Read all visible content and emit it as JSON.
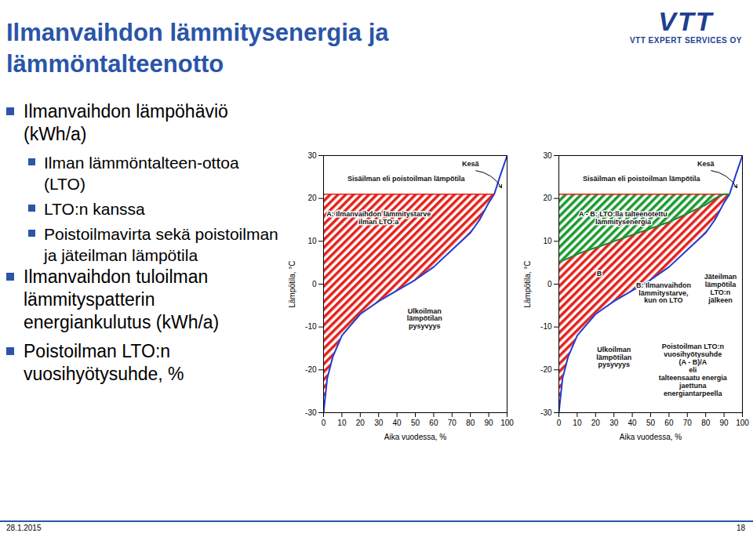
{
  "slide": {
    "title": "Ilmanvaihdon lämmitysenergia ja lämmöntalteenotto",
    "logo": {
      "mark": "VTT",
      "text": "VTT EXPERT SERVICES OY"
    },
    "bullets": [
      {
        "text": "Ilmanvaihdon lämpöhäviö (kWh/a)",
        "sub": [
          "Ilman lämmöntalteen-ottoa (LTO)",
          "LTO:n kanssa",
          "Poistoilmavirta sekä poistoilman ja jäteilman lämpötila"
        ]
      },
      {
        "text": "Ilmanvaihdon tuloilman lämmityspatterin energiankulutus (kWh/a)",
        "sub": []
      },
      {
        "text": "Poistoilman LTO:n vuosihyötysuhde, %",
        "sub": []
      }
    ],
    "date": "28.1.2015",
    "page": "18"
  },
  "chart_data": [
    {
      "type": "line",
      "x_label": "Aika vuodessa, %",
      "y_label": "Lämpötila, °C",
      "x": [
        0,
        2,
        5,
        10,
        15,
        20,
        30,
        40,
        50,
        60,
        70,
        80,
        85,
        90,
        93,
        96,
        100
      ],
      "series": [
        {
          "name": "Ulkoilman\nlämpötilan\npysyvyys",
          "color": "#1f3bd1",
          "values": [
            -30,
            -22,
            -17,
            -12,
            -9.5,
            -7,
            -4,
            -1.5,
            1,
            4,
            8,
            12,
            15,
            19,
            21,
            25,
            30
          ]
        },
        {
          "name": "Sisäilman eli poistoilman lämpötila",
          "color": "#e3211c",
          "values": [
            21,
            21,
            21,
            21,
            21,
            21,
            21,
            21,
            21,
            21,
            21,
            21,
            21,
            21,
            21,
            null,
            null
          ]
        }
      ],
      "fills": [
        {
          "label": "A: Ilmanvaihdon lämmitystarve\nilman LTO:a",
          "color": "#e3211c",
          "upper": "Sisäilman eli poistoilman lämpötila",
          "lower": "Ulkoilman\nlämpötilan\npysyvyys"
        }
      ],
      "annotations": [
        {
          "text": "Kesä"
        }
      ],
      "xlim": [
        0,
        100
      ],
      "xticks": [
        0,
        10,
        20,
        30,
        40,
        50,
        60,
        70,
        80,
        90,
        100
      ],
      "ylim": [
        -30,
        30
      ],
      "yticks": [
        -30,
        -20,
        -10,
        0,
        10,
        20,
        30
      ],
      "grid": false
    },
    {
      "type": "line",
      "x_label": "Aika vuodessa, %",
      "y_label": "Lämpötila, °C",
      "x": [
        0,
        2,
        5,
        10,
        15,
        20,
        30,
        40,
        50,
        60,
        70,
        80,
        85,
        90,
        93,
        96,
        100
      ],
      "series": [
        {
          "name": "Ulkoilman\nlämpötilan\npysyvyys",
          "color": "#1f3bd1",
          "values": [
            -30,
            -22,
            -17,
            -12,
            -9.5,
            -7,
            -4,
            -1.5,
            1,
            4,
            8,
            12,
            15,
            19,
            21,
            25,
            30
          ]
        },
        {
          "name": "Sisäilman eli poistoilman lämpötila",
          "color": "#e3211c",
          "values": [
            21,
            21,
            21,
            21,
            21,
            21,
            21,
            21,
            21,
            21,
            21,
            21,
            21,
            21,
            21,
            null,
            null
          ]
        },
        {
          "name": "Jäteilman\nlämpötila\nLTO:n\njälkeen",
          "color": "#1a8a2e",
          "values": [
            5,
            5.5,
            6,
            7,
            7.8,
            8.5,
            10,
            11.5,
            13,
            14.5,
            16.5,
            18.5,
            20,
            21,
            21,
            null,
            null
          ]
        }
      ],
      "fills": [
        {
          "label": "A - B: LTO:lla talteenotettu\nlämmitysenergia",
          "color": "#1a9a2e",
          "upper": "Sisäilman eli poistoilman lämpötila",
          "lower": "Jäteilman\nlämpötila\nLTO:n\njälkeen"
        },
        {
          "label": "B",
          "color": "#e3211c",
          "upper": "Jäteilman\nlämpötila\nLTO:n\njälkeen",
          "lower": "Ulkoilman\nlämpötilan\npysyvyys"
        }
      ],
      "annotations": [
        {
          "text": "B: Ilmanvaihdon\nlämmitystarve,\nkun on LTO"
        },
        {
          "text": "Poistoilman LTO:n\nvuosihyötysuhde\n(A - B)/A\neli\ntalteensaatu energia\njaettuna\nenergiantarpeella"
        },
        {
          "text": "Kesä"
        }
      ],
      "xlim": [
        0,
        100
      ],
      "xticks": [
        0,
        10,
        20,
        30,
        40,
        50,
        60,
        70,
        80,
        90,
        100
      ],
      "ylim": [
        -30,
        30
      ],
      "yticks": [
        -30,
        -20,
        -10,
        0,
        10,
        20,
        30
      ],
      "grid": false
    }
  ]
}
